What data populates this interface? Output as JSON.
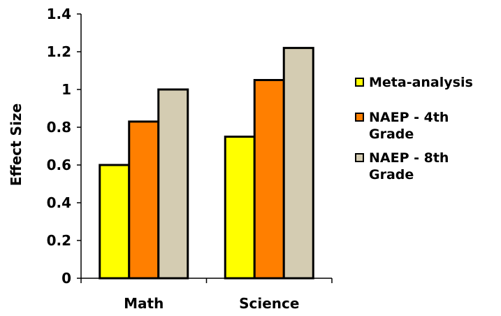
{
  "chart_data": {
    "type": "bar",
    "categories": [
      "Math",
      "Science"
    ],
    "series": [
      {
        "name": "Meta-analysis",
        "values": [
          0.6,
          0.75
        ],
        "color": "#FFFF00"
      },
      {
        "name": "NAEP - 4th Grade",
        "values": [
          0.83,
          1.05
        ],
        "color": "#FF7F00"
      },
      {
        "name": "NAEP - 8th Grade",
        "values": [
          1.0,
          1.22
        ],
        "color": "#D4CCB2"
      }
    ],
    "title": "",
    "xlabel": "",
    "ylabel": "Effect Size",
    "ylim": [
      0,
      1.4
    ],
    "yticks": [
      "0",
      "0.2",
      "0.4",
      "0.6",
      "0.8",
      "1",
      "1.2",
      "1.4"
    ],
    "grid": false,
    "legend_position": "right"
  },
  "legend": {
    "items": [
      {
        "label_line1": "Meta-analysis",
        "label_line2": "",
        "swatch_color": "#FFFF00"
      },
      {
        "label_line1": "NAEP - 4th",
        "label_line2": "Grade",
        "swatch_color": "#FF7F00"
      },
      {
        "label_line1": "NAEP - 8th",
        "label_line2": "Grade",
        "swatch_color": "#D4CCB2"
      }
    ]
  }
}
